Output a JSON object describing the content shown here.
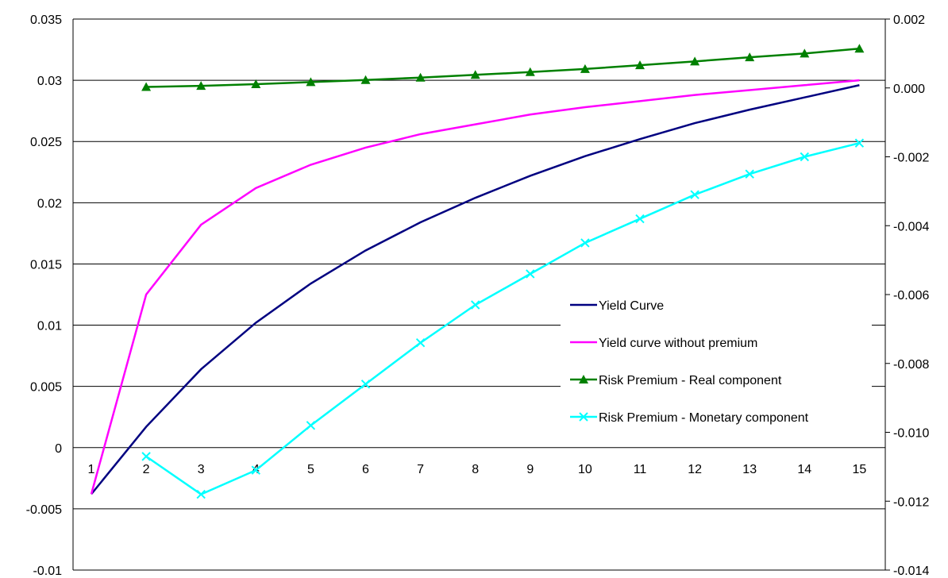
{
  "chart_data": {
    "type": "line",
    "x": [
      1,
      2,
      3,
      4,
      5,
      6,
      7,
      8,
      9,
      10,
      11,
      12,
      13,
      14,
      15
    ],
    "y_left": {
      "range": [
        -0.01,
        0.035
      ],
      "ticks": [
        "0.035",
        "0.03",
        "0.025",
        "0.02",
        "0.015",
        "0.01",
        "0.005",
        "0",
        "-0.005",
        "-0.01"
      ]
    },
    "y_right": {
      "range": [
        -0.014,
        0.002
      ],
      "ticks": [
        "0.002",
        "0.000",
        "-0.002",
        "-0.004",
        "-0.006",
        "-0.008",
        "-0.010",
        "-0.012",
        "-0.014"
      ]
    },
    "x_tick_labels": [
      "1",
      "2",
      "3",
      "4",
      "5",
      "6",
      "7",
      "8",
      "9",
      "10",
      "11",
      "12",
      "13",
      "14",
      "15"
    ],
    "grid": "horizontal",
    "legend_placement": "right-middle",
    "series": [
      {
        "name": "Yield Curve",
        "axis": "left",
        "color": "#000080",
        "marker": "none",
        "values": [
          -0.0038,
          0.0017,
          0.0064,
          0.0102,
          0.0134,
          0.0161,
          0.0184,
          0.0204,
          0.0222,
          0.0238,
          0.0252,
          0.0265,
          0.0276,
          0.0286,
          0.0296
        ]
      },
      {
        "name": "Yield curve without premium",
        "axis": "left",
        "color": "#ff00ff",
        "marker": "none",
        "values": [
          -0.0038,
          0.0125,
          0.0182,
          0.0212,
          0.0231,
          0.0245,
          0.0256,
          0.0264,
          0.0272,
          0.0278,
          0.0283,
          0.0288,
          0.0292,
          0.0296,
          0.03
        ]
      },
      {
        "name": "Risk Premium - Real component",
        "axis": "right",
        "color": "#008000",
        "marker": "triangle",
        "x": [
          2,
          3,
          4,
          5,
          6,
          7,
          8,
          9,
          10,
          11,
          12,
          13,
          14,
          15
        ],
        "values": [
          3e-05,
          6e-05,
          0.00011,
          0.00017,
          0.00023,
          0.0003,
          0.00038,
          0.00046,
          0.00055,
          0.00066,
          0.00077,
          0.00089,
          0.001,
          0.00114
        ]
      },
      {
        "name": "Risk Premium - Monetary component",
        "axis": "right",
        "color": "#00ffff",
        "marker": "x",
        "x": [
          2,
          3,
          4,
          5,
          6,
          7,
          8,
          9,
          10,
          11,
          12,
          13,
          14,
          15
        ],
        "values": [
          -0.0107,
          -0.0118,
          -0.0111,
          -0.0098,
          -0.0086,
          -0.0074,
          -0.0063,
          -0.0054,
          -0.0045,
          -0.0038,
          -0.0031,
          -0.0025,
          -0.002,
          -0.0016
        ]
      }
    ]
  }
}
